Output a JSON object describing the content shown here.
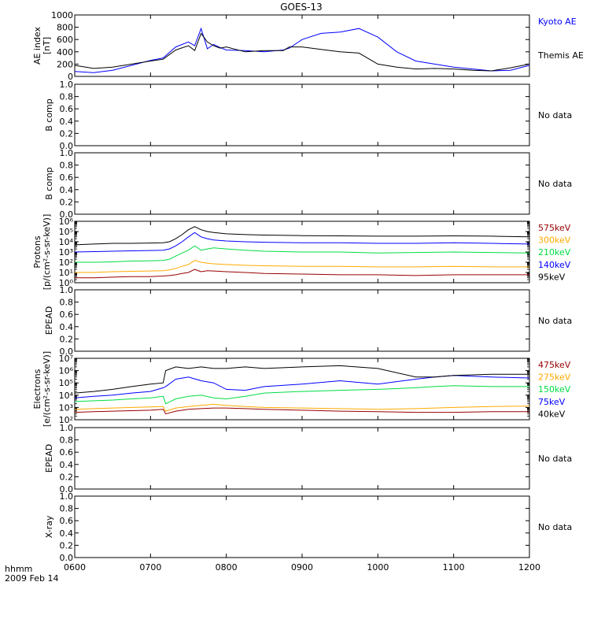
{
  "title": "GOES-13",
  "footer": {
    "unit_label": "hhmm",
    "date_label": "2009 Feb 14"
  },
  "x_axis": {
    "ticks": [
      "0600",
      "0700",
      "0800",
      "0900",
      "1000",
      "1100",
      "1200"
    ],
    "range": [
      "0600",
      "1200"
    ]
  },
  "colors": {
    "black": "#000000",
    "blue": "#0000ff",
    "green": "#00dd44",
    "orange": "#ffaa00",
    "darkred": "#990000",
    "axis": "#000000"
  },
  "chart_data": [
    {
      "type": "line",
      "id": "ae",
      "ylabel_lines": [
        "AE index",
        "[nT]"
      ],
      "ylim": [
        0,
        1000
      ],
      "y_ticks": [
        "0",
        "200",
        "400",
        "600",
        "800",
        "1000"
      ],
      "scale": "linear",
      "legend_placement": "right",
      "x": [
        "0600",
        "0615",
        "0630",
        "0645",
        "0700",
        "0710",
        "0720",
        "0730",
        "0735",
        "0740",
        "0745",
        "0750",
        "0755",
        "0800",
        "0815",
        "0830",
        "0845",
        "0850",
        "0900",
        "0915",
        "0930",
        "0945",
        "1000",
        "1015",
        "1030",
        "1045",
        "1100",
        "1115",
        "1130",
        "1145",
        "1200"
      ],
      "series": [
        {
          "name": "Kyoto AE",
          "color": "#0000ff",
          "values": [
            80,
            60,
            100,
            180,
            260,
            300,
            480,
            560,
            500,
            780,
            450,
            520,
            470,
            430,
            420,
            400,
            430,
            460,
            600,
            700,
            720,
            780,
            640,
            400,
            250,
            200,
            150,
            120,
            90,
            100,
            180
          ]
        },
        {
          "name": "Themis AE",
          "color": "#000000",
          "values": [
            180,
            130,
            150,
            200,
            250,
            280,
            430,
            500,
            420,
            700,
            560,
            500,
            460,
            480,
            400,
            420,
            420,
            480,
            480,
            440,
            400,
            380,
            200,
            150,
            120,
            130,
            120,
            100,
            90,
            140,
            200
          ]
        }
      ]
    },
    {
      "type": "line",
      "id": "bcomp1",
      "ylabel_lines": [
        "B comp"
      ],
      "ylim": [
        0,
        1
      ],
      "y_ticks": [
        "0.0",
        "0.2",
        "0.4",
        "0.6",
        "0.8",
        "1.0"
      ],
      "scale": "linear",
      "status_label": "No data",
      "series": []
    },
    {
      "type": "line",
      "id": "bcomp2",
      "ylabel_lines": [
        "B comp"
      ],
      "ylim": [
        0,
        1
      ],
      "y_ticks": [
        "0.0",
        "0.2",
        "0.4",
        "0.6",
        "0.8",
        "1.0"
      ],
      "scale": "linear",
      "status_label": "No data",
      "series": []
    },
    {
      "type": "line",
      "id": "protons",
      "ylabel_lines": [
        "Protons",
        "[p/(cm²-s-sr-keV)]"
      ],
      "ylim": [
        1,
        1000000
      ],
      "y_ticks": [
        "10⁰",
        "10¹",
        "10²",
        "10³",
        "10⁴",
        "10⁵",
        "10⁶"
      ],
      "scale": "log",
      "legend_placement": "right",
      "x": [
        "0600",
        "0615",
        "0630",
        "0645",
        "0700",
        "0710",
        "0715",
        "0720",
        "0725",
        "0730",
        "0735",
        "0740",
        "0745",
        "0750",
        "0800",
        "0815",
        "0830",
        "0900",
        "0930",
        "1000",
        "1030",
        "1100",
        "1130",
        "1200"
      ],
      "series": [
        {
          "name": "575keV",
          "color": "#990000",
          "values": [
            3,
            3,
            3.5,
            4,
            4,
            4.5,
            5,
            6,
            8,
            10,
            20,
            12,
            15,
            14,
            12,
            10,
            8,
            7,
            6,
            6,
            5,
            6,
            6,
            6
          ]
        },
        {
          "name": "300keV",
          "color": "#ffaa00",
          "values": [
            10,
            10,
            12,
            13,
            14,
            15,
            18,
            25,
            40,
            60,
            150,
            100,
            80,
            70,
            60,
            50,
            45,
            40,
            40,
            35,
            35,
            40,
            35,
            35
          ]
        },
        {
          "name": "210keV",
          "color": "#00dd44",
          "values": [
            100,
            100,
            110,
            130,
            140,
            150,
            200,
            400,
            800,
            1500,
            4000,
            1500,
            2000,
            2500,
            2000,
            1500,
            1200,
            1000,
            1000,
            800,
            900,
            1000,
            900,
            800
          ]
        },
        {
          "name": "140keV",
          "color": "#0000ff",
          "values": [
            1000,
            1100,
            1200,
            1300,
            1400,
            1500,
            2000,
            4000,
            10000,
            30000,
            80000,
            30000,
            20000,
            15000,
            12000,
            10000,
            9000,
            8000,
            8000,
            7000,
            7000,
            8000,
            7000,
            6000
          ]
        },
        {
          "name": "95keV",
          "color": "#000000",
          "values": [
            5000,
            6000,
            7000,
            7000,
            7500,
            8000,
            10000,
            20000,
            50000,
            150000,
            300000,
            150000,
            100000,
            80000,
            60000,
            50000,
            45000,
            40000,
            38000,
            35000,
            35000,
            38000,
            35000,
            30000
          ]
        }
      ]
    },
    {
      "type": "line",
      "id": "epead1",
      "ylabel_lines": [
        "EPEAD"
      ],
      "ylim": [
        0,
        1
      ],
      "y_ticks": [
        "0.0",
        "0.2",
        "0.4",
        "0.6",
        "0.8",
        "1.0"
      ],
      "scale": "linear",
      "status_label": "No data",
      "series": []
    },
    {
      "type": "line",
      "id": "electrons",
      "ylabel_lines": [
        "Electrons",
        "[e/(cm²-s-sr-keV)]"
      ],
      "ylim": [
        100,
        10000000
      ],
      "y_ticks": [
        "10²",
        "10³",
        "10⁴",
        "10⁵",
        "10⁶",
        "10⁷"
      ],
      "scale": "log",
      "legend_placement": "right",
      "x": [
        "0600",
        "0615",
        "0630",
        "0645",
        "0700",
        "0710",
        "0712",
        "0720",
        "0730",
        "0740",
        "0750",
        "0800",
        "0815",
        "0830",
        "0900",
        "0930",
        "1000",
        "1030",
        "1045",
        "1100",
        "1130",
        "1200"
      ],
      "series": [
        {
          "name": "475keV",
          "color": "#990000",
          "values": [
            400,
            450,
            500,
            550,
            600,
            700,
            300,
            500,
            700,
            800,
            900,
            900,
            800,
            700,
            600,
            500,
            450,
            400,
            400,
            400,
            450,
            450
          ]
        },
        {
          "name": "275keV",
          "color": "#ffaa00",
          "values": [
            700,
            800,
            900,
            1000,
            1100,
            1200,
            500,
            900,
            1200,
            1500,
            1800,
            1500,
            1200,
            1000,
            900,
            800,
            700,
            800,
            900,
            1000,
            1200,
            1300
          ]
        },
        {
          "name": "150keV",
          "color": "#00dd44",
          "values": [
            3000,
            3500,
            4000,
            5000,
            6000,
            8000,
            2000,
            5000,
            8000,
            10000,
            6000,
            5000,
            8000,
            15000,
            20000,
            25000,
            30000,
            40000,
            50000,
            60000,
            50000,
            50000
          ]
        },
        {
          "name": "75keV",
          "color": "#0000ff",
          "values": [
            6000,
            8000,
            10000,
            15000,
            20000,
            40000,
            50000,
            200000,
            300000,
            150000,
            100000,
            30000,
            25000,
            50000,
            80000,
            150000,
            80000,
            200000,
            300000,
            400000,
            300000,
            250000
          ]
        },
        {
          "name": "40keV",
          "color": "#000000",
          "values": [
            15000,
            20000,
            30000,
            50000,
            80000,
            100000,
            1000000,
            2000000,
            1500000,
            2000000,
            1500000,
            1500000,
            2000000,
            1500000,
            2000000,
            2500000,
            1500000,
            300000,
            300000,
            400000,
            500000,
            500000
          ]
        }
      ]
    },
    {
      "type": "line",
      "id": "epead2",
      "ylabel_lines": [
        "EPEAD"
      ],
      "ylim": [
        0,
        1
      ],
      "y_ticks": [
        "0.0",
        "0.2",
        "0.4",
        "0.6",
        "0.8",
        "1.0"
      ],
      "scale": "linear",
      "status_label": "No data",
      "series": []
    },
    {
      "type": "line",
      "id": "xray",
      "ylabel_lines": [
        "X-ray"
      ],
      "ylim": [
        0,
        1
      ],
      "y_ticks": [
        "0.0",
        "0.2",
        "0.4",
        "0.6",
        "0.8",
        "1.0"
      ],
      "scale": "linear",
      "status_label": "No data",
      "series": []
    }
  ]
}
